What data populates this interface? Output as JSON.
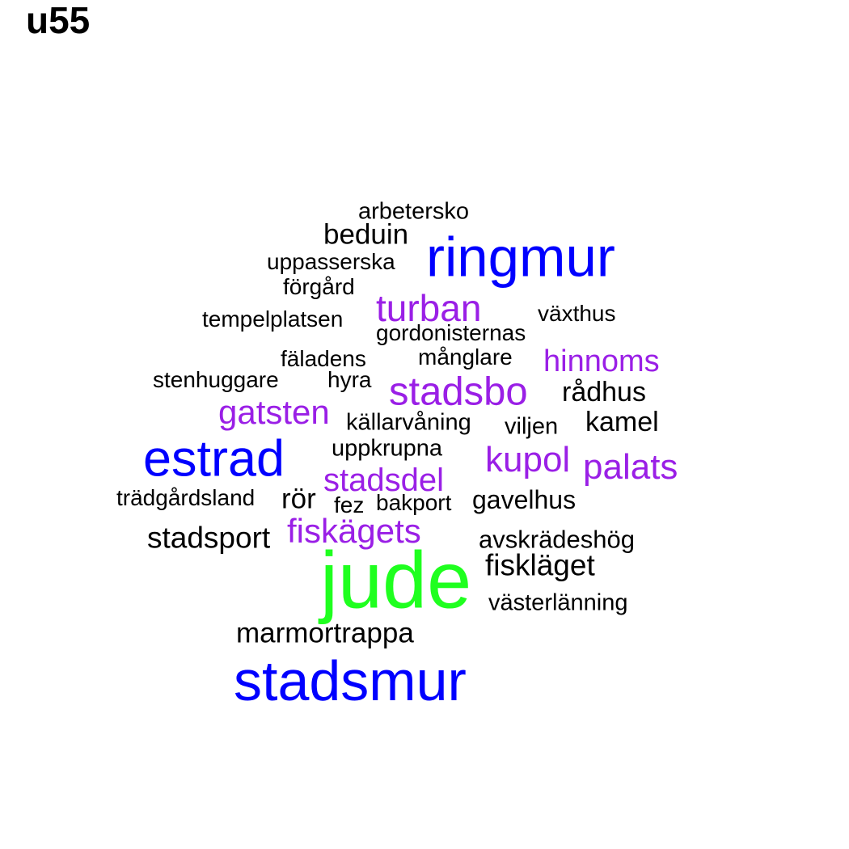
{
  "title": "u55",
  "colors": {
    "blue": "#0000ff",
    "purple": "#9a1fe6",
    "green": "#1fff1f",
    "black": "#000000"
  },
  "words": [
    {
      "text": "arbetersko",
      "color": "black"
    },
    {
      "text": "beduin",
      "color": "black"
    },
    {
      "text": "ringmur",
      "color": "blue"
    },
    {
      "text": "uppasserska",
      "color": "black"
    },
    {
      "text": "förgård",
      "color": "black"
    },
    {
      "text": "turban",
      "color": "purple"
    },
    {
      "text": "växthus",
      "color": "black"
    },
    {
      "text": "tempelplatsen",
      "color": "black"
    },
    {
      "text": "gordonisternas",
      "color": "black"
    },
    {
      "text": "fäladens",
      "color": "black"
    },
    {
      "text": "månglare",
      "color": "black"
    },
    {
      "text": "hinnoms",
      "color": "purple"
    },
    {
      "text": "stenhuggare",
      "color": "black"
    },
    {
      "text": "hyra",
      "color": "black"
    },
    {
      "text": "stadsbo",
      "color": "purple"
    },
    {
      "text": "rådhus",
      "color": "black"
    },
    {
      "text": "gatsten",
      "color": "purple"
    },
    {
      "text": "källarvåning",
      "color": "black"
    },
    {
      "text": "viljen",
      "color": "black"
    },
    {
      "text": "kamel",
      "color": "black"
    },
    {
      "text": "estrad",
      "color": "blue"
    },
    {
      "text": "uppkrupna",
      "color": "black"
    },
    {
      "text": "kupol",
      "color": "purple"
    },
    {
      "text": "palats",
      "color": "purple"
    },
    {
      "text": "stadsdel",
      "color": "purple"
    },
    {
      "text": "trädgårdsland",
      "color": "black"
    },
    {
      "text": "rör",
      "color": "black"
    },
    {
      "text": "fez",
      "color": "black"
    },
    {
      "text": "bakport",
      "color": "black"
    },
    {
      "text": "gavelhus",
      "color": "black"
    },
    {
      "text": "stadsport",
      "color": "black"
    },
    {
      "text": "fiskägets",
      "color": "purple"
    },
    {
      "text": "avskrädeshög",
      "color": "black"
    },
    {
      "text": "jude",
      "color": "green"
    },
    {
      "text": "fiskläget",
      "color": "black"
    },
    {
      "text": "västerlänning",
      "color": "black"
    },
    {
      "text": "marmortrappa",
      "color": "black"
    },
    {
      "text": "stadsmur",
      "color": "blue"
    }
  ]
}
